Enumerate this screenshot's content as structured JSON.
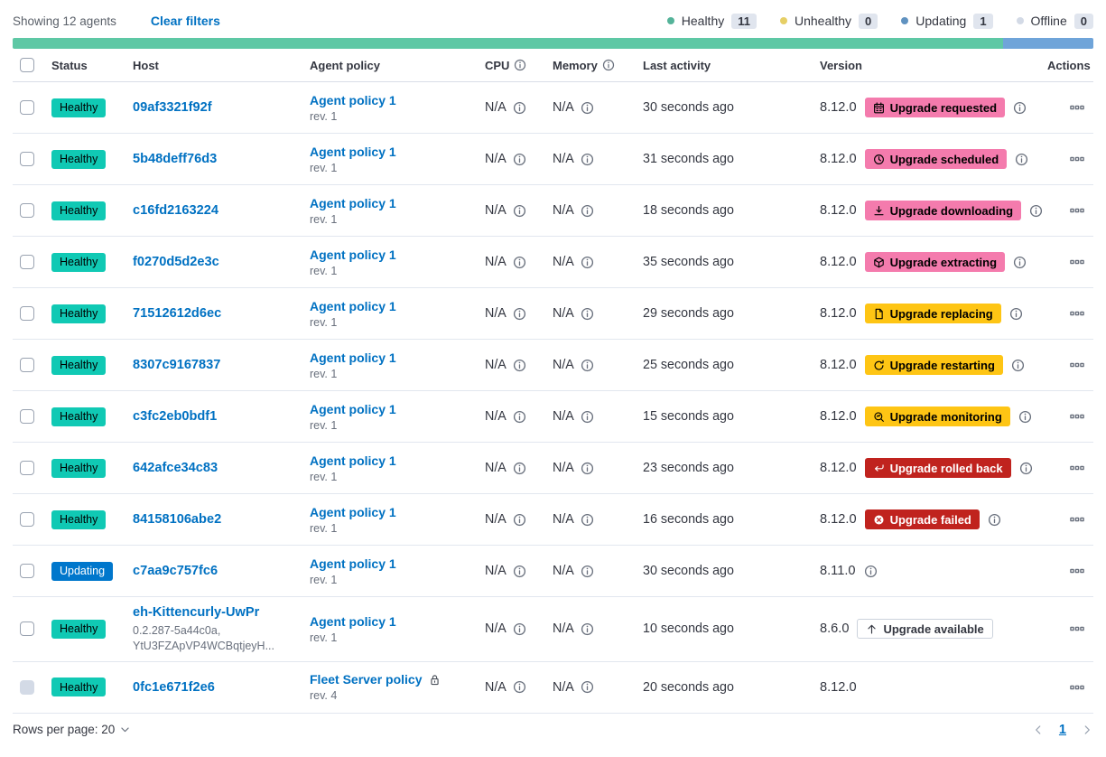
{
  "toolbar": {
    "showing": "Showing 12 agents",
    "clear_filters": "Clear filters",
    "legend": [
      {
        "label": "Healthy",
        "count": "11",
        "color": "#54B399"
      },
      {
        "label": "Unhealthy",
        "count": "0",
        "color": "#E6CF66"
      },
      {
        "label": "Updating",
        "count": "1",
        "color": "#6092C0"
      },
      {
        "label": "Offline",
        "count": "0",
        "color": "#D3DAE6"
      }
    ]
  },
  "health_bar": {
    "segments": [
      {
        "status": "healthy",
        "color": "#5EC8A5",
        "percent": 91.67
      },
      {
        "status": "updating",
        "color": "#6FA4D9",
        "percent": 8.33
      }
    ]
  },
  "icons": {
    "calendar-icon": "calendar",
    "clock-icon": "clock",
    "download-icon": "download arrow",
    "package-icon": "package cube",
    "document-icon": "document page",
    "refresh-icon": "circular refresh arrow",
    "inspect-icon": "magnifier inspect",
    "return-icon": "rolled back return arrow",
    "error-icon": "x in filled circle",
    "arrow-up-icon": "upgrade up arrow",
    "lock-icon": "padlock",
    "info-icon": "circled i",
    "boxes-horizontal-icon": "three squares actions menu",
    "chevron-down-icon": "chevron down",
    "chevron-left-icon": "chevron left",
    "chevron-right-icon": "chevron right"
  },
  "table": {
    "headers": {
      "status": "Status",
      "host": "Host",
      "policy": "Agent policy",
      "cpu": "CPU",
      "memory": "Memory",
      "last_activity": "Last activity",
      "version": "Version",
      "actions": "Actions"
    },
    "rows": [
      {
        "status": "Healthy",
        "status_bg": "#10C9B4",
        "status_text": "#000000",
        "host": "09af3321f92f",
        "policy": "Agent policy 1",
        "rev": "rev. 1",
        "cpu": "N/A",
        "memory": "N/A",
        "last_activity": "30 seconds ago",
        "version": "8.12.0",
        "badge": {
          "label": "Upgrade requested",
          "icon": "calendar-icon",
          "bg": "#F47BAD",
          "text": "#000000"
        },
        "version_info": true
      },
      {
        "status": "Healthy",
        "status_bg": "#10C9B4",
        "status_text": "#000000",
        "host": "5b48deff76d3",
        "policy": "Agent policy 1",
        "rev": "rev. 1",
        "cpu": "N/A",
        "memory": "N/A",
        "last_activity": "31 seconds ago",
        "version": "8.12.0",
        "badge": {
          "label": "Upgrade scheduled",
          "icon": "clock-icon",
          "bg": "#F47BAD",
          "text": "#000000"
        },
        "version_info": true
      },
      {
        "status": "Healthy",
        "status_bg": "#10C9B4",
        "status_text": "#000000",
        "host": "c16fd2163224",
        "policy": "Agent policy 1",
        "rev": "rev. 1",
        "cpu": "N/A",
        "memory": "N/A",
        "last_activity": "18 seconds ago",
        "version": "8.12.0",
        "badge": {
          "label": "Upgrade downloading",
          "icon": "download-icon",
          "bg": "#F47BAD",
          "text": "#000000"
        },
        "version_info": true
      },
      {
        "status": "Healthy",
        "status_bg": "#10C9B4",
        "status_text": "#000000",
        "host": "f0270d5d2e3c",
        "policy": "Agent policy 1",
        "rev": "rev. 1",
        "cpu": "N/A",
        "memory": "N/A",
        "last_activity": "35 seconds ago",
        "version": "8.12.0",
        "badge": {
          "label": "Upgrade extracting",
          "icon": "package-icon",
          "bg": "#F47BAD",
          "text": "#000000"
        },
        "version_info": true
      },
      {
        "status": "Healthy",
        "status_bg": "#10C9B4",
        "status_text": "#000000",
        "host": "71512612d6ec",
        "policy": "Agent policy 1",
        "rev": "rev. 1",
        "cpu": "N/A",
        "memory": "N/A",
        "last_activity": "29 seconds ago",
        "version": "8.12.0",
        "badge": {
          "label": "Upgrade replacing",
          "icon": "document-icon",
          "bg": "#FEC514",
          "text": "#000000"
        },
        "version_info": true
      },
      {
        "status": "Healthy",
        "status_bg": "#10C9B4",
        "status_text": "#000000",
        "host": "8307c9167837",
        "policy": "Agent policy 1",
        "rev": "rev. 1",
        "cpu": "N/A",
        "memory": "N/A",
        "last_activity": "25 seconds ago",
        "version": "8.12.0",
        "badge": {
          "label": "Upgrade restarting",
          "icon": "refresh-icon",
          "bg": "#FEC514",
          "text": "#000000"
        },
        "version_info": true
      },
      {
        "status": "Healthy",
        "status_bg": "#10C9B4",
        "status_text": "#000000",
        "host": "c3fc2eb0bdf1",
        "policy": "Agent policy 1",
        "rev": "rev. 1",
        "cpu": "N/A",
        "memory": "N/A",
        "last_activity": "15 seconds ago",
        "version": "8.12.0",
        "badge": {
          "label": "Upgrade monitoring",
          "icon": "inspect-icon",
          "bg": "#FEC514",
          "text": "#000000"
        },
        "version_info": true
      },
      {
        "status": "Healthy",
        "status_bg": "#10C9B4",
        "status_text": "#000000",
        "host": "642afce34c83",
        "policy": "Agent policy 1",
        "rev": "rev. 1",
        "cpu": "N/A",
        "memory": "N/A",
        "last_activity": "23 seconds ago",
        "version": "8.12.0",
        "badge": {
          "label": "Upgrade rolled back",
          "icon": "return-icon",
          "bg": "#C0231E",
          "text": "#FFFFFF"
        },
        "version_info": true
      },
      {
        "status": "Healthy",
        "status_bg": "#10C9B4",
        "status_text": "#000000",
        "host": "84158106abe2",
        "policy": "Agent policy 1",
        "rev": "rev. 1",
        "cpu": "N/A",
        "memory": "N/A",
        "last_activity": "16 seconds ago",
        "version": "8.12.0",
        "badge": {
          "label": "Upgrade failed",
          "icon": "error-icon",
          "bg": "#C0231E",
          "text": "#FFFFFF"
        },
        "version_info": true
      },
      {
        "status": "Updating",
        "status_bg": "#0077CC",
        "status_text": "#FFFFFF",
        "host": "c7aa9c757fc6",
        "policy": "Agent policy 1",
        "rev": "rev. 1",
        "cpu": "N/A",
        "memory": "N/A",
        "last_activity": "30 seconds ago",
        "version": "8.11.0",
        "badge": null,
        "version_info": true
      },
      {
        "status": "Healthy",
        "status_bg": "#10C9B4",
        "status_text": "#000000",
        "host": "eh-Kittencurly-UwPr",
        "host_sub": [
          "0.2.287-5a44c0a,",
          "YtU3FZApVP4WCBqtjeyH..."
        ],
        "policy": "Agent policy 1",
        "rev": "rev. 1",
        "cpu": "N/A",
        "memory": "N/A",
        "last_activity": "10 seconds ago",
        "version": "8.6.0",
        "badge": {
          "label": "Upgrade available",
          "icon": "arrow-up-icon",
          "bg": "#FFFFFF",
          "text": "#343741",
          "border": "#CBD2DC"
        },
        "version_info": false
      },
      {
        "status": "Healthy",
        "status_bg": "#10C9B4",
        "status_text": "#000000",
        "host": "0fc1e671f2e6",
        "policy": "Fleet Server policy",
        "rev": "rev. 4",
        "locked": true,
        "checkbox_disabled": true,
        "cpu": "N/A",
        "memory": "N/A",
        "last_activity": "20 seconds ago",
        "version": "8.12.0",
        "badge": null,
        "version_info": false
      }
    ]
  },
  "footer": {
    "rows_per_page": "Rows per page: 20",
    "page": "1"
  }
}
